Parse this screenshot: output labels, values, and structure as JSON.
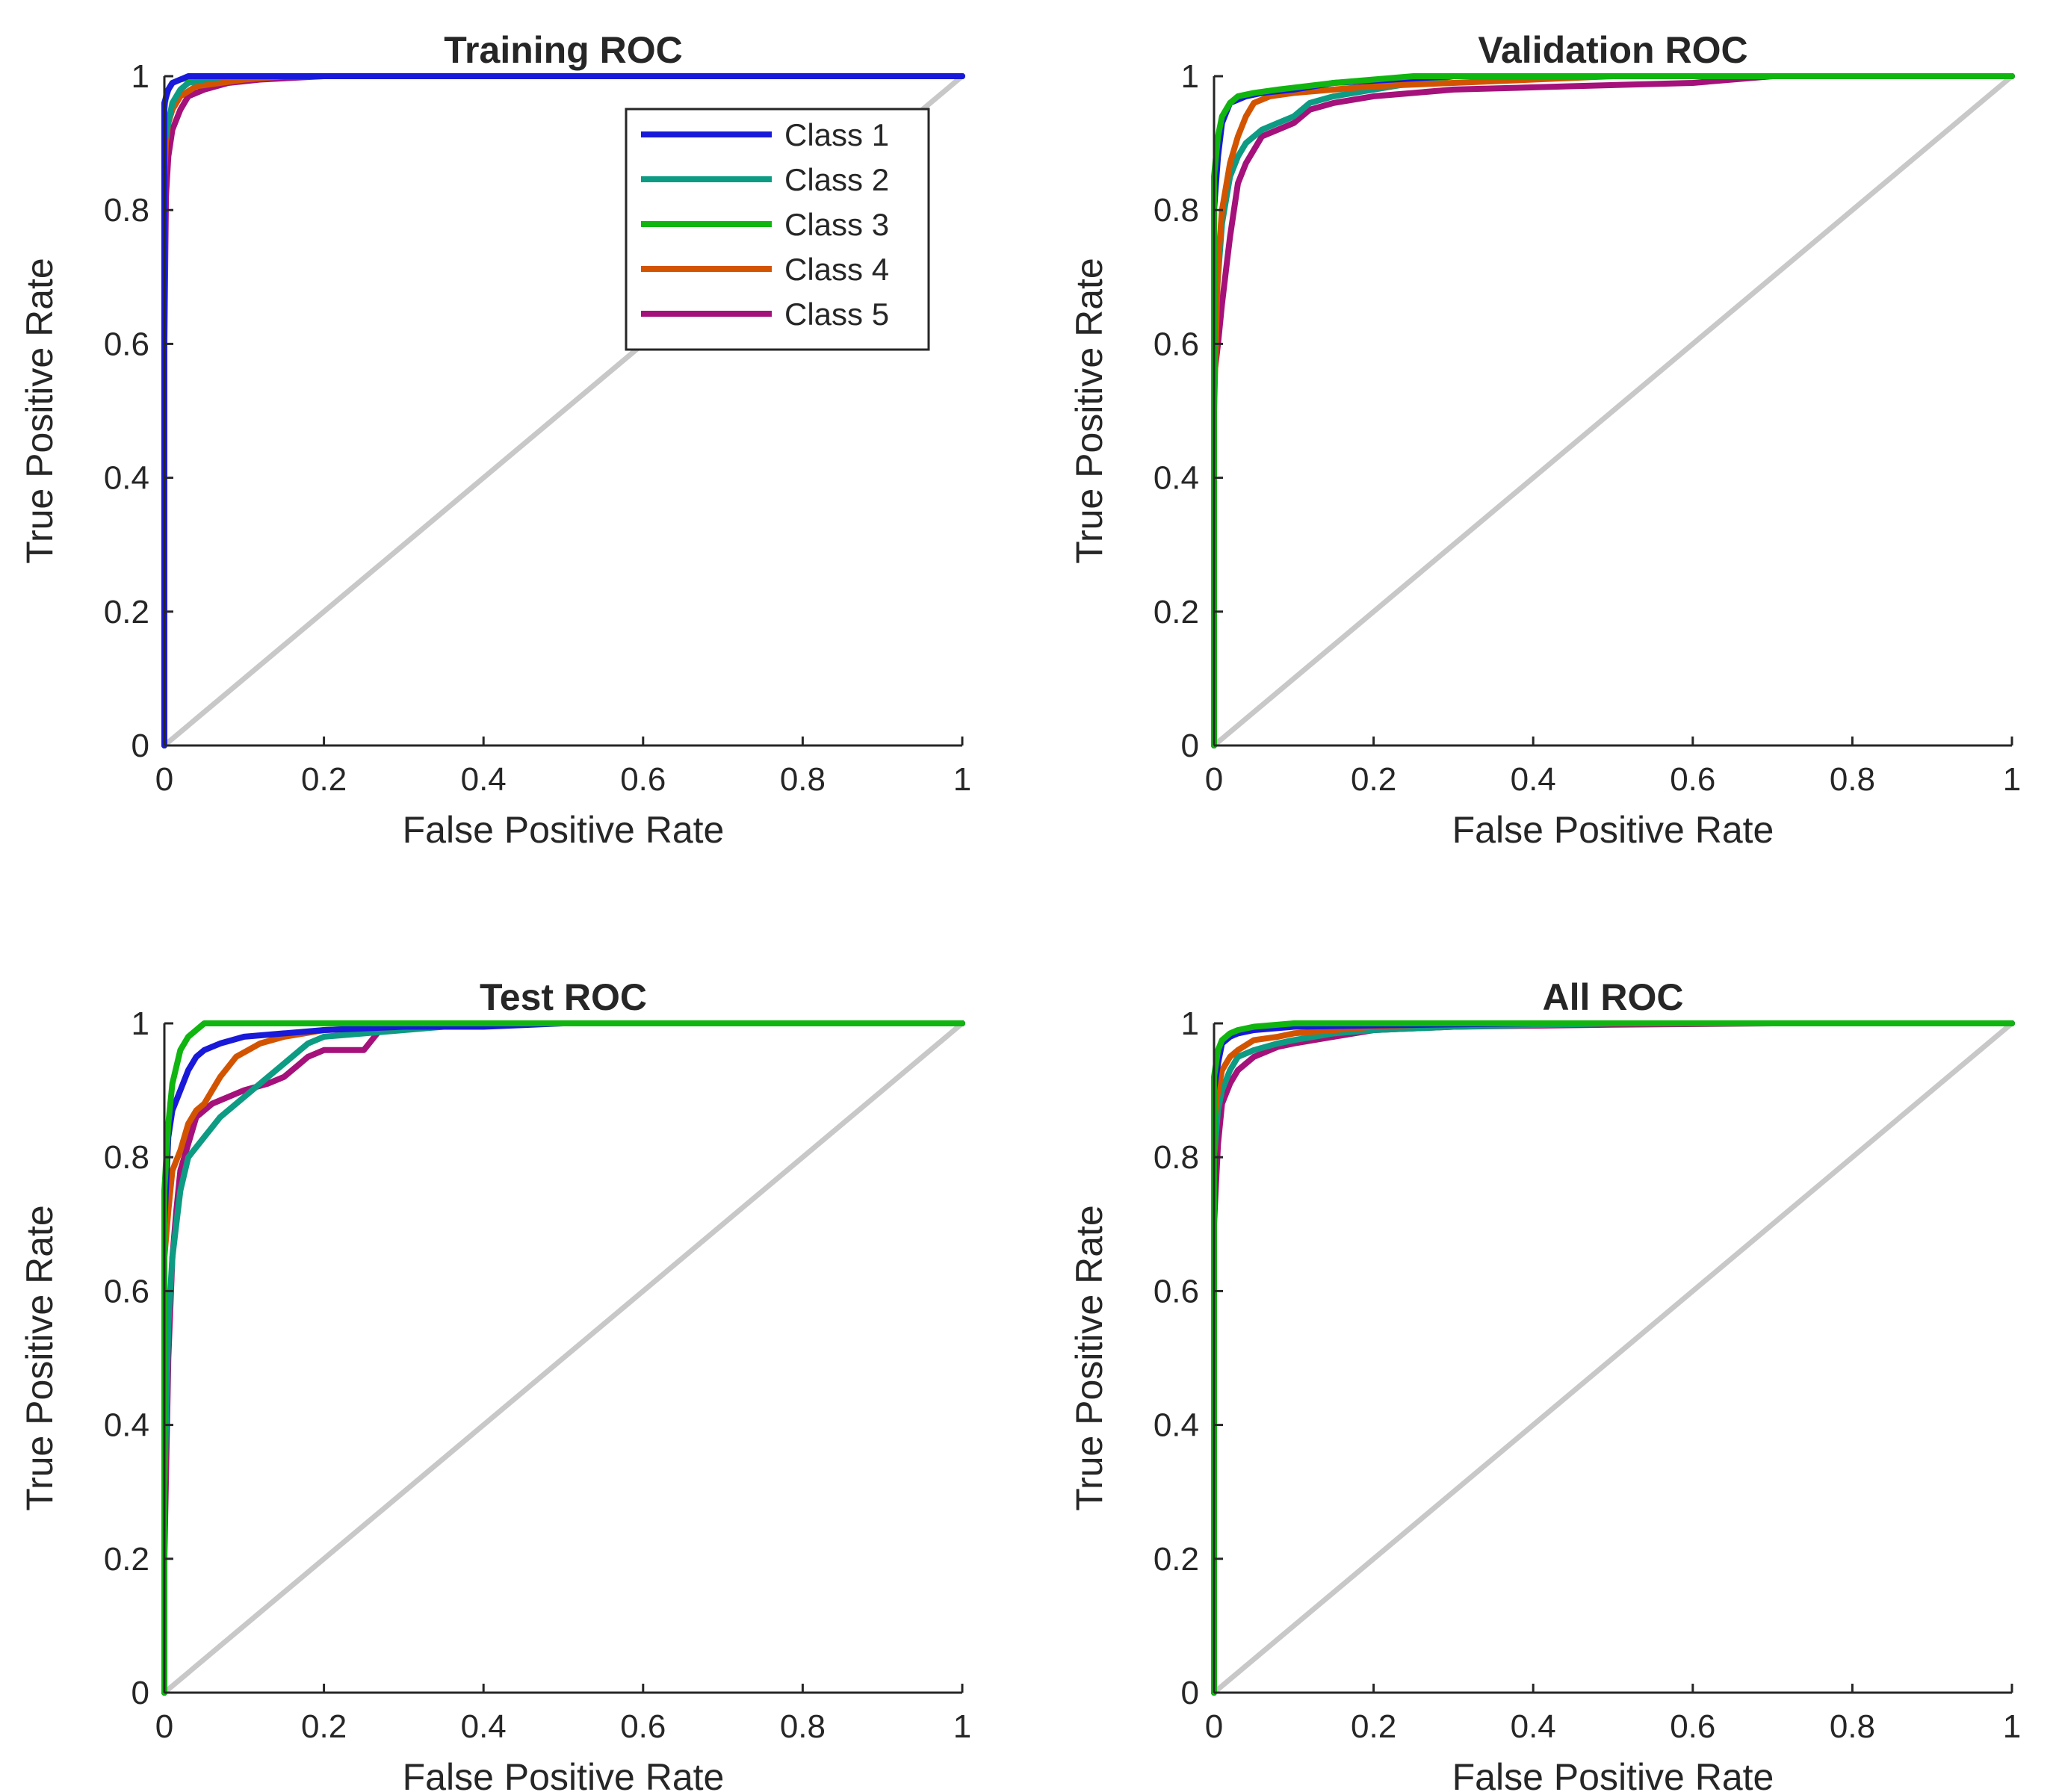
{
  "figure": {
    "diagonal_color": "#c8c8c8",
    "axis_color": "#262626"
  },
  "legend": {
    "placement": "top-right of first panel",
    "entries": [
      {
        "name": "Class 1",
        "color": "#1919d9"
      },
      {
        "name": "Class 2",
        "color": "#0d9b83"
      },
      {
        "name": "Class 3",
        "color": "#10b50f"
      },
      {
        "name": "Class 4",
        "color": "#d35400"
      },
      {
        "name": "Class 5",
        "color": "#a5117a"
      }
    ]
  },
  "chart_data": [
    {
      "type": "line",
      "title": "Training ROC",
      "xlabel": "False Positive Rate",
      "ylabel": "True Positive Rate",
      "xlim": [
        0,
        1
      ],
      "ylim": [
        0,
        1
      ],
      "xticks": [
        "0",
        "0.2",
        "0.4",
        "0.6",
        "0.8",
        "1"
      ],
      "yticks": [
        "0",
        "0.2",
        "0.4",
        "0.6",
        "0.8",
        "1"
      ],
      "show_legend": true,
      "series": [
        {
          "name": "Class 5",
          "x": [
            0,
            0,
            0.002,
            0.005,
            0.01,
            0.02,
            0.03,
            0.05,
            0.08,
            0.12,
            0.2,
            0.3,
            1
          ],
          "y": [
            0,
            0.6,
            0.82,
            0.88,
            0.92,
            0.95,
            0.97,
            0.98,
            0.99,
            0.995,
            1,
            1,
            1
          ]
        },
        {
          "name": "Class 4",
          "x": [
            0,
            0,
            0.002,
            0.005,
            0.01,
            0.02,
            0.04,
            0.07,
            0.1,
            0.15,
            0.2,
            1
          ],
          "y": [
            0,
            0.85,
            0.9,
            0.93,
            0.95,
            0.97,
            0.985,
            0.99,
            0.995,
            1,
            1,
            1
          ]
        },
        {
          "name": "Class 2",
          "x": [
            0,
            0,
            0.005,
            0.01,
            0.02,
            0.03,
            0.05,
            0.08,
            0.12,
            1
          ],
          "y": [
            0,
            0.9,
            0.93,
            0.96,
            0.98,
            0.99,
            0.995,
            1,
            1,
            1
          ]
        },
        {
          "name": "Class 3",
          "x": [
            0,
            0,
            0.002,
            0.005,
            0.01,
            0.02,
            0.04,
            0.08,
            1
          ],
          "y": [
            0,
            0.95,
            0.97,
            0.98,
            0.99,
            0.995,
            1,
            1,
            1
          ]
        },
        {
          "name": "Class 1",
          "x": [
            0,
            0,
            0.005,
            0.01,
            0.02,
            0.03,
            0.05,
            1
          ],
          "y": [
            0,
            0.96,
            0.98,
            0.99,
            0.995,
            1,
            1,
            1
          ]
        }
      ]
    },
    {
      "type": "line",
      "title": "Validation ROC",
      "xlabel": "False Positive Rate",
      "ylabel": "True Positive Rate",
      "xlim": [
        0,
        1
      ],
      "ylim": [
        0,
        1
      ],
      "xticks": [
        "0",
        "0.2",
        "0.4",
        "0.6",
        "0.8",
        "1"
      ],
      "yticks": [
        "0",
        "0.2",
        "0.4",
        "0.6",
        "0.8",
        "1"
      ],
      "show_legend": false,
      "series": [
        {
          "name": "Class 5",
          "x": [
            0,
            0,
            0.005,
            0.01,
            0.015,
            0.02,
            0.025,
            0.03,
            0.04,
            0.05,
            0.06,
            0.08,
            0.1,
            0.12,
            0.15,
            0.2,
            0.3,
            0.45,
            0.6,
            0.7,
            1
          ],
          "y": [
            0,
            0.55,
            0.6,
            0.66,
            0.71,
            0.76,
            0.8,
            0.84,
            0.87,
            0.89,
            0.91,
            0.92,
            0.93,
            0.95,
            0.96,
            0.97,
            0.98,
            0.985,
            0.99,
            1,
            1
          ]
        },
        {
          "name": "Class 2",
          "x": [
            0,
            0,
            0.005,
            0.01,
            0.02,
            0.03,
            0.04,
            0.06,
            0.08,
            0.1,
            0.12,
            0.15,
            0.2,
            0.25,
            0.3,
            1
          ],
          "y": [
            0,
            0.62,
            0.7,
            0.78,
            0.85,
            0.88,
            0.9,
            0.92,
            0.93,
            0.94,
            0.96,
            0.97,
            0.98,
            0.99,
            1,
            1
          ]
        },
        {
          "name": "Class 4",
          "x": [
            0,
            0,
            0.005,
            0.01,
            0.02,
            0.03,
            0.04,
            0.05,
            0.07,
            0.1,
            0.15,
            0.2,
            0.3,
            0.4,
            0.5,
            1
          ],
          "y": [
            0,
            0.5,
            0.72,
            0.8,
            0.87,
            0.91,
            0.94,
            0.96,
            0.97,
            0.975,
            0.98,
            0.985,
            0.99,
            0.995,
            1,
            1
          ]
        },
        {
          "name": "Class 1",
          "x": [
            0,
            0,
            0.005,
            0.01,
            0.02,
            0.04,
            0.06,
            0.1,
            0.15,
            0.3,
            1
          ],
          "y": [
            0,
            0.8,
            0.88,
            0.93,
            0.96,
            0.97,
            0.975,
            0.98,
            0.99,
            1,
            1
          ]
        },
        {
          "name": "Class 3",
          "x": [
            0,
            0,
            0.005,
            0.01,
            0.02,
            0.03,
            0.05,
            0.08,
            0.15,
            0.25,
            1
          ],
          "y": [
            0,
            0.85,
            0.91,
            0.94,
            0.96,
            0.97,
            0.975,
            0.98,
            0.99,
            1,
            1
          ]
        }
      ]
    },
    {
      "type": "line",
      "title": "Test ROC",
      "xlabel": "False Positive Rate",
      "ylabel": "True Positive Rate",
      "xlim": [
        0,
        1
      ],
      "ylim": [
        0,
        1
      ],
      "xticks": [
        "0",
        "0.2",
        "0.4",
        "0.6",
        "0.8",
        "1"
      ],
      "yticks": [
        "0",
        "0.2",
        "0.4",
        "0.6",
        "0.8",
        "1"
      ],
      "show_legend": false,
      "series": [
        {
          "name": "Class 5",
          "x": [
            0,
            0,
            0.005,
            0.01,
            0.015,
            0.02,
            0.03,
            0.04,
            0.06,
            0.08,
            0.1,
            0.13,
            0.15,
            0.17,
            0.18,
            0.2,
            0.25,
            0.27,
            0.35,
            0.45,
            1
          ],
          "y": [
            0,
            0.2,
            0.5,
            0.65,
            0.72,
            0.78,
            0.82,
            0.86,
            0.88,
            0.89,
            0.9,
            0.91,
            0.92,
            0.94,
            0.95,
            0.96,
            0.96,
            0.99,
            1,
            1,
            1
          ]
        },
        {
          "name": "Class 2",
          "x": [
            0,
            0,
            0.005,
            0.01,
            0.015,
            0.02,
            0.03,
            0.05,
            0.07,
            0.1,
            0.13,
            0.15,
            0.18,
            0.2,
            0.3,
            0.4,
            1
          ],
          "y": [
            0,
            0.3,
            0.55,
            0.65,
            0.7,
            0.75,
            0.8,
            0.83,
            0.86,
            0.89,
            0.92,
            0.94,
            0.97,
            0.98,
            0.99,
            1,
            1
          ]
        },
        {
          "name": "Class 4",
          "x": [
            0,
            0,
            0.005,
            0.01,
            0.02,
            0.03,
            0.04,
            0.05,
            0.06,
            0.07,
            0.09,
            0.12,
            0.15,
            0.2,
            0.3,
            0.4,
            1
          ],
          "y": [
            0,
            0.65,
            0.72,
            0.78,
            0.81,
            0.85,
            0.87,
            0.88,
            0.9,
            0.92,
            0.95,
            0.97,
            0.98,
            0.99,
            0.995,
            1,
            1
          ]
        },
        {
          "name": "Class 1",
          "x": [
            0,
            0,
            0.005,
            0.01,
            0.02,
            0.03,
            0.04,
            0.05,
            0.07,
            0.1,
            0.15,
            0.2,
            0.3,
            0.4,
            0.5,
            0.53,
            1
          ],
          "y": [
            0,
            0.7,
            0.83,
            0.87,
            0.9,
            0.93,
            0.95,
            0.96,
            0.97,
            0.98,
            0.985,
            0.99,
            0.995,
            0.995,
            1,
            1,
            1
          ]
        },
        {
          "name": "Class 3",
          "x": [
            0,
            0,
            0.005,
            0.01,
            0.02,
            0.03,
            0.05,
            0.1,
            0.2,
            1
          ],
          "y": [
            0,
            0.75,
            0.85,
            0.91,
            0.96,
            0.98,
            1,
            1,
            1,
            1
          ]
        }
      ]
    },
    {
      "type": "line",
      "title": "All ROC",
      "xlabel": "False Positive Rate",
      "ylabel": "True Positive Rate",
      "xlim": [
        0,
        1
      ],
      "ylim": [
        0,
        1
      ],
      "xticks": [
        "0",
        "0.2",
        "0.4",
        "0.6",
        "0.8",
        "1"
      ],
      "yticks": [
        "0",
        "0.2",
        "0.4",
        "0.6",
        "0.8",
        "1"
      ],
      "show_legend": false,
      "series": [
        {
          "name": "Class 5",
          "x": [
            0,
            0,
            0.005,
            0.01,
            0.02,
            0.03,
            0.05,
            0.08,
            0.1,
            0.15,
            0.2,
            0.3,
            0.5,
            0.7,
            1
          ],
          "y": [
            0,
            0.7,
            0.82,
            0.88,
            0.91,
            0.93,
            0.95,
            0.965,
            0.97,
            0.98,
            0.99,
            0.995,
            0.998,
            1,
            1
          ]
        },
        {
          "name": "Class 2",
          "x": [
            0,
            0,
            0.005,
            0.01,
            0.02,
            0.03,
            0.05,
            0.08,
            0.1,
            0.15,
            0.2,
            0.3,
            0.5,
            1
          ],
          "y": [
            0,
            0.8,
            0.87,
            0.9,
            0.93,
            0.95,
            0.96,
            0.97,
            0.975,
            0.985,
            0.99,
            0.995,
            1,
            1
          ]
        },
        {
          "name": "Class 4",
          "x": [
            0,
            0,
            0.005,
            0.01,
            0.02,
            0.03,
            0.05,
            0.08,
            0.1,
            0.15,
            0.2,
            0.3,
            1
          ],
          "y": [
            0,
            0.85,
            0.9,
            0.93,
            0.95,
            0.96,
            0.975,
            0.98,
            0.985,
            0.99,
            0.995,
            1,
            1
          ]
        },
        {
          "name": "Class 1",
          "x": [
            0,
            0,
            0.005,
            0.01,
            0.02,
            0.03,
            0.05,
            0.1,
            0.2,
            0.4,
            1
          ],
          "y": [
            0,
            0.9,
            0.94,
            0.97,
            0.98,
            0.985,
            0.99,
            0.995,
            0.997,
            1,
            1
          ]
        },
        {
          "name": "Class 3",
          "x": [
            0,
            0,
            0.005,
            0.01,
            0.02,
            0.03,
            0.05,
            0.1,
            0.2,
            1
          ],
          "y": [
            0,
            0.92,
            0.96,
            0.975,
            0.985,
            0.99,
            0.995,
            1,
            1,
            1
          ]
        }
      ]
    }
  ]
}
